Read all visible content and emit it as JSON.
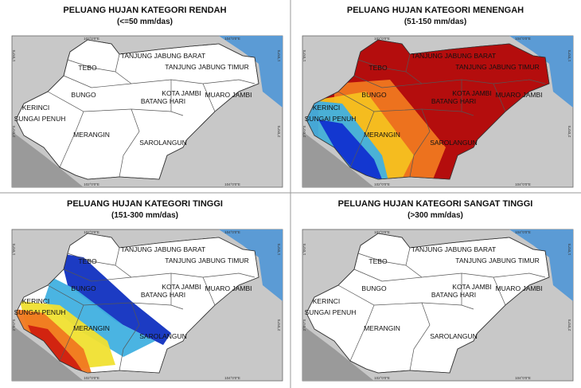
{
  "panels": [
    {
      "title": "PELUANG HUJAN KATEGORI RENDAH",
      "subtitle": "(<=50 mm/das)"
    },
    {
      "title": "PELUANG HUJAN KATEGORI MENENGAH",
      "subtitle": "(51-150 mm/das)"
    },
    {
      "title": "PELUANG HUJAN KATEGORI TINGGI",
      "subtitle": "(151-300 mm/das)"
    },
    {
      "title": "PELUANG HUJAN KATEGORI SANGAT TINGGI",
      "subtitle": "(>300 mm/das)"
    }
  ],
  "regions": [
    "TANJUNG JABUNG BARAT",
    "TANJUNG JABUNG TIMUR",
    "TEBO",
    "BUNGO",
    "KOTA JAMBI",
    "MUARO JAMBI",
    "BATANG HARI",
    "KERINCI",
    "SUNGAI PENUH",
    "MERANGIN",
    "SAROLANGUN"
  ],
  "coordinates": {
    "x": [
      "102°0'0\"E",
      "104°0'0\"E"
    ],
    "y": [
      "1°0'0\"S",
      "2°0'0\"S"
    ]
  }
}
